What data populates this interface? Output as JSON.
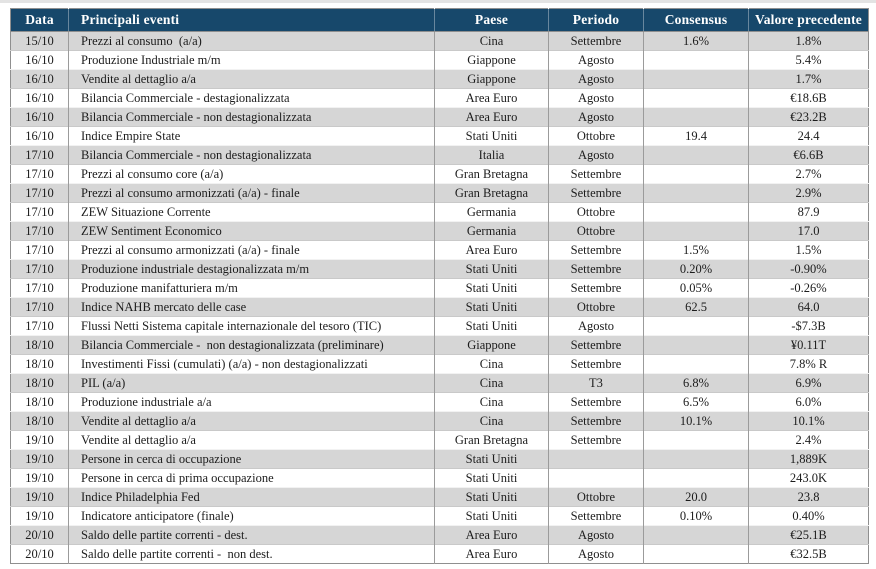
{
  "table": {
    "columns": [
      "Data",
      "Principali eventi",
      "Paese",
      "Periodo",
      "Consensus",
      "Valore precedente"
    ],
    "colors": {
      "header_bg": "#17486B",
      "header_text": "#FFFFFF",
      "row_alt_bg": "#D6D6D6",
      "border": "#9B9B9B"
    },
    "rows": [
      {
        "date": "15/10",
        "event": "Prezzi al consumo  (a/a)",
        "country": "Cina",
        "period": "Settembre",
        "consensus": "1.6%",
        "previous": "1.8%"
      },
      {
        "date": "16/10",
        "event": "Produzione Industriale m/m",
        "country": "Giappone",
        "period": "Agosto",
        "consensus": "",
        "previous": "5.4%"
      },
      {
        "date": "16/10",
        "event": "Vendite al dettaglio a/a",
        "country": "Giappone",
        "period": "Agosto",
        "consensus": "",
        "previous": "1.7%"
      },
      {
        "date": "16/10",
        "event": "Bilancia Commerciale - destagionalizzata",
        "country": "Area Euro",
        "period": "Agosto",
        "consensus": "",
        "previous": "€18.6B"
      },
      {
        "date": "16/10",
        "event": "Bilancia Commerciale - non destagionalizzata",
        "country": "Area Euro",
        "period": "Agosto",
        "consensus": "",
        "previous": "€23.2B"
      },
      {
        "date": "16/10",
        "event": "Indice Empire State",
        "country": "Stati Uniti",
        "period": "Ottobre",
        "consensus": "19.4",
        "previous": "24.4"
      },
      {
        "date": "17/10",
        "event": "Bilancia Commerciale - non destagionalizzata",
        "country": "Italia",
        "period": "Agosto",
        "consensus": "",
        "previous": "€6.6B"
      },
      {
        "date": "17/10",
        "event": "Prezzi al consumo core (a/a)",
        "country": "Gran Bretagna",
        "period": "Settembre",
        "consensus": "",
        "previous": "2.7%"
      },
      {
        "date": "17/10",
        "event": "Prezzi al consumo armonizzati (a/a) - finale",
        "country": "Gran Bretagna",
        "period": "Settembre",
        "consensus": "",
        "previous": "2.9%"
      },
      {
        "date": "17/10",
        "event": "ZEW Situazione Corrente",
        "country": "Germania",
        "period": "Ottobre",
        "consensus": "",
        "previous": "87.9"
      },
      {
        "date": "17/10",
        "event": "ZEW Sentiment Economico",
        "country": "Germania",
        "period": "Ottobre",
        "consensus": "",
        "previous": "17.0"
      },
      {
        "date": "17/10",
        "event": "Prezzi al consumo armonizzati (a/a) - finale",
        "country": "Area Euro",
        "period": "Settembre",
        "consensus": "1.5%",
        "previous": "1.5%"
      },
      {
        "date": "17/10",
        "event": "Produzione industriale destagionalizzata m/m",
        "country": "Stati Uniti",
        "period": "Settembre",
        "consensus": "0.20%",
        "previous": "-0.90%"
      },
      {
        "date": "17/10",
        "event": "Produzione manifatturiera m/m",
        "country": "Stati Uniti",
        "period": "Settembre",
        "consensus": "0.05%",
        "previous": "-0.26%"
      },
      {
        "date": "17/10",
        "event": "Indice NAHB mercato delle case",
        "country": "Stati Uniti",
        "period": "Ottobre",
        "consensus": "62.5",
        "previous": "64.0"
      },
      {
        "date": "17/10",
        "event": "Flussi Netti Sistema capitale internazionale del tesoro (TIC)",
        "country": "Stati Uniti",
        "period": "Agosto",
        "consensus": "",
        "previous": "-$7.3B"
      },
      {
        "date": "18/10",
        "event": "Bilancia Commerciale -  non destagionalizzata (preliminare)",
        "country": "Giappone",
        "period": "Settembre",
        "consensus": "",
        "previous": "¥0.11T"
      },
      {
        "date": "18/10",
        "event": "Investimenti Fissi (cumulati) (a/a) - non destagionalizzati",
        "country": "Cina",
        "period": "Settembre",
        "consensus": "",
        "previous": "7.8% R"
      },
      {
        "date": "18/10",
        "event": "PIL (a/a)",
        "country": "Cina",
        "period": "T3",
        "consensus": "6.8%",
        "previous": "6.9%"
      },
      {
        "date": "18/10",
        "event": "Produzione industriale a/a",
        "country": "Cina",
        "period": "Settembre",
        "consensus": "6.5%",
        "previous": "6.0%"
      },
      {
        "date": "18/10",
        "event": "Vendite al dettaglio a/a",
        "country": "Cina",
        "period": "Settembre",
        "consensus": "10.1%",
        "previous": "10.1%"
      },
      {
        "date": "19/10",
        "event": "Vendite al dettaglio a/a",
        "country": "Gran Bretagna",
        "period": "Settembre",
        "consensus": "",
        "previous": "2.4%"
      },
      {
        "date": "19/10",
        "event": "Persone in cerca di occupazione",
        "country": "Stati Uniti",
        "period": "",
        "consensus": "",
        "previous": "1,889K"
      },
      {
        "date": "19/10",
        "event": "Persone in cerca di prima occupazione",
        "country": "Stati Uniti",
        "period": "",
        "consensus": "",
        "previous": "243.0K"
      },
      {
        "date": "19/10",
        "event": "Indice Philadelphia Fed",
        "country": "Stati Uniti",
        "period": "Ottobre",
        "consensus": "20.0",
        "previous": "23.8"
      },
      {
        "date": "19/10",
        "event": "Indicatore anticipatore (finale)",
        "country": "Stati Uniti",
        "period": "Settembre",
        "consensus": "0.10%",
        "previous": "0.40%"
      },
      {
        "date": "20/10",
        "event": "Saldo delle partite correnti - dest.",
        "country": "Area Euro",
        "period": "Agosto",
        "consensus": "",
        "previous": "€25.1B"
      },
      {
        "date": "20/10",
        "event": "Saldo delle partite correnti -  non dest.",
        "country": "Area Euro",
        "period": "Agosto",
        "consensus": "",
        "previous": "€32.5B"
      }
    ]
  }
}
